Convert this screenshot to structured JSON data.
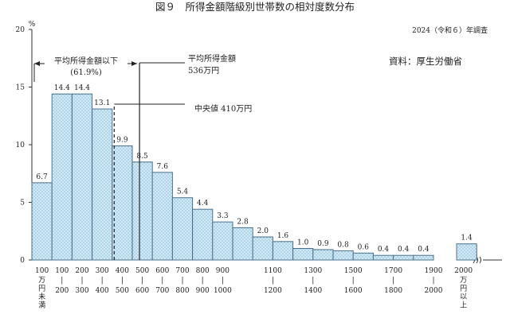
{
  "figure": {
    "title": "図９　所得金額階級別世帯数の相対度数分布",
    "survey_year": "2024（令和６）年調査",
    "source": "資料：厚生労働省"
  },
  "chart_data": {
    "type": "bar",
    "title": "所得金額階級別世帯数の相対度数分布",
    "y_unit": "%",
    "ylim": [
      0,
      20
    ],
    "y_ticks": [
      "0",
      "5",
      "10",
      "15",
      "20"
    ],
    "categories": [
      "100万円未満",
      "100-200",
      "200-300",
      "300-400",
      "400-500",
      "500-600",
      "600-700",
      "700-800",
      "800-900",
      "900-1000",
      "1000-1100",
      "1100-1200",
      "1200-1300",
      "1300-1400",
      "1400-1500",
      "1500-1600",
      "1600-1700",
      "1700-1800",
      "1800-1900",
      "1900-2000",
      "2000万円以上"
    ],
    "values": [
      6.7,
      14.4,
      14.4,
      13.1,
      9.9,
      8.5,
      7.6,
      5.4,
      4.4,
      3.3,
      2.8,
      2.0,
      1.6,
      1.0,
      0.9,
      0.8,
      0.6,
      0.4,
      0.4,
      0.4,
      1.4
    ],
    "value_labels": [
      "6.7",
      "14.4",
      "14.4",
      "13.1",
      "9.9",
      "8.5",
      "7.6",
      "5.4",
      "4.4",
      "3.3",
      "2.8",
      "2.0",
      "1.6",
      "1.0",
      "0.9",
      "0.8",
      "0.6",
      "0.4",
      "0.4",
      "0.4",
      "1.4"
    ],
    "x_tick_labels": [
      {
        "top": "100",
        "bottom": "万円未満"
      },
      {
        "top": "100",
        "bottom": "200"
      },
      {
        "top": "200",
        "bottom": "300"
      },
      {
        "top": "300",
        "bottom": "400"
      },
      {
        "top": "400",
        "bottom": "500"
      },
      {
        "top": "500",
        "bottom": "600"
      },
      {
        "top": "600",
        "bottom": "700"
      },
      {
        "top": "700",
        "bottom": "800"
      },
      {
        "top": "800",
        "bottom": "900"
      },
      {
        "top": "900",
        "bottom": "1000"
      },
      {
        "top": "1100",
        "bottom": "1200"
      },
      {
        "top": "1300",
        "bottom": "1400"
      },
      {
        "top": "1500",
        "bottom": "1600"
      },
      {
        "top": "1700",
        "bottom": "1800"
      },
      {
        "top": "1900",
        "bottom": "2000"
      },
      {
        "top": "2000",
        "bottom": "万円以上"
      }
    ],
    "mean": {
      "label_line1": "平均所得金額",
      "label_line2": "536万円",
      "value": 536
    },
    "median": {
      "label": "中央値 410万円",
      "value": 410
    },
    "below_mean": {
      "label_line1": "平均所得金額以下",
      "label_line2": "(61.9%)"
    },
    "colors": {
      "bar_fill": "#cfeaf6",
      "bar_stroke": "#4a6f8a",
      "bar_dots": "#6a9fc0"
    }
  }
}
